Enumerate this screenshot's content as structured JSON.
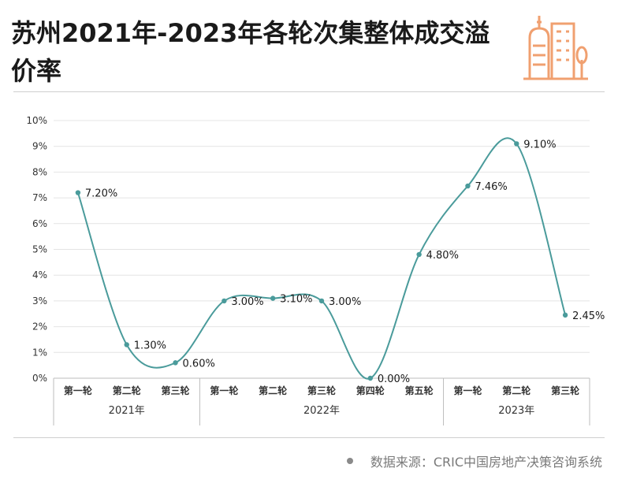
{
  "title": "苏州2021年-2023年各轮次集整体成交溢价率",
  "source": "数据来源：CRIC中国房地产决策咨询系统",
  "colors": {
    "line": "#4a9b9b",
    "grid": "#e4e4e4",
    "logo": "#f0a070"
  },
  "chart_data": {
    "type": "line",
    "title": "苏州2021年-2023年各轮次集整体成交溢价率",
    "ylim": [
      0,
      10
    ],
    "yticks": [
      "0%",
      "1%",
      "2%",
      "3%",
      "4%",
      "5%",
      "6%",
      "7%",
      "8%",
      "9%",
      "10%"
    ],
    "grid": true,
    "categories": [
      "第一轮",
      "第二轮",
      "第三轮",
      "第一轮",
      "第二轮",
      "第三轮",
      "第四轮",
      "第五轮",
      "第一轮",
      "第二轮",
      "第三轮"
    ],
    "groups": [
      {
        "label": "2021年",
        "count": 3
      },
      {
        "label": "2022年",
        "count": 5
      },
      {
        "label": "2023年",
        "count": 3
      }
    ],
    "series": [
      {
        "values": [
          7.2,
          1.3,
          0.6,
          3.0,
          3.1,
          3.0,
          0.0,
          4.8,
          7.46,
          9.1,
          2.45
        ],
        "labels": [
          "7.20%",
          "1.30%",
          "0.60%",
          "3.00%",
          "3.10%",
          "3.00%",
          "0.00%",
          "4.80%",
          "7.46%",
          "9.10%",
          "2.45%"
        ]
      }
    ]
  }
}
